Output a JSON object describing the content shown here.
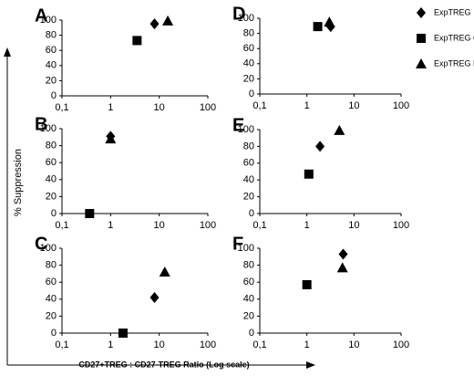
{
  "chart_data": [
    {
      "type": "scatter",
      "title": "A",
      "xscale": "log",
      "xlim": [
        0.1,
        100
      ],
      "ylim": [
        0,
        100
      ],
      "xticks": [
        {
          "value": 0.1,
          "label": "0,1"
        },
        1,
        10,
        100
      ],
      "yticks": [
        0,
        20,
        40,
        60,
        80,
        100
      ],
      "series": [
        {
          "marker": "diamond",
          "color": "#000000",
          "x": [
            8
          ],
          "values": [
            95
          ]
        },
        {
          "marker": "square",
          "color": "#000000",
          "x": [
            3.5
          ],
          "values": [
            73
          ]
        },
        {
          "marker": "triangle",
          "color": "#000000",
          "x": [
            15
          ],
          "values": [
            99
          ]
        }
      ]
    },
    {
      "type": "scatter",
      "title": "B",
      "xscale": "log",
      "xlim": [
        0.1,
        100
      ],
      "ylim": [
        0,
        100
      ],
      "xticks": [
        {
          "value": 0.1,
          "label": "0,1"
        },
        1,
        10,
        100
      ],
      "yticks": [
        0,
        20,
        40,
        60,
        80,
        100
      ],
      "series": [
        {
          "marker": "diamond",
          "color": "#000000",
          "x": [
            1
          ],
          "values": [
            91
          ]
        },
        {
          "marker": "square",
          "color": "#000000",
          "x": [
            0.37
          ],
          "values": [
            0
          ]
        },
        {
          "marker": "triangle",
          "color": "#000000",
          "x": [
            1
          ],
          "values": [
            88
          ]
        }
      ]
    },
    {
      "type": "scatter",
      "title": "C",
      "xscale": "log",
      "xlim": [
        0.1,
        100
      ],
      "ylim": [
        0,
        100
      ],
      "xticks": [
        {
          "value": 0.1,
          "label": "0,1"
        },
        1,
        10,
        100
      ],
      "yticks": [
        0,
        20,
        40,
        60,
        80,
        100
      ],
      "series": [
        {
          "marker": "diamond",
          "color": "#000000",
          "x": [
            8
          ],
          "values": [
            42
          ]
        },
        {
          "marker": "square",
          "color": "#000000",
          "x": [
            1.8
          ],
          "values": [
            0
          ]
        },
        {
          "marker": "triangle",
          "color": "#000000",
          "x": [
            13
          ],
          "values": [
            72
          ]
        }
      ]
    },
    {
      "type": "scatter",
      "title": "D",
      "xscale": "log",
      "xlim": [
        0.1,
        100
      ],
      "ylim": [
        0,
        100
      ],
      "xticks": [
        {
          "value": 0.1,
          "label": "0,1"
        },
        1,
        10,
        100
      ],
      "yticks": [
        0,
        20,
        40,
        60,
        80,
        100
      ],
      "series": [
        {
          "marker": "diamond",
          "color": "#000000",
          "x": [
            3.2
          ],
          "values": [
            89
          ]
        },
        {
          "marker": "square",
          "color": "#000000",
          "x": [
            1.7
          ],
          "values": [
            89
          ]
        },
        {
          "marker": "triangle",
          "color": "#000000",
          "x": [
            3
          ],
          "values": [
            95
          ]
        }
      ]
    },
    {
      "type": "scatter",
      "title": "E",
      "xscale": "log",
      "xlim": [
        0.1,
        100
      ],
      "ylim": [
        0,
        100
      ],
      "xticks": [
        {
          "value": 0.1,
          "label": "0,1"
        },
        1,
        10,
        100
      ],
      "yticks": [
        0,
        20,
        40,
        60,
        80,
        100
      ],
      "series": [
        {
          "marker": "diamond",
          "color": "#000000",
          "x": [
            1.9
          ],
          "values": [
            80
          ]
        },
        {
          "marker": "square",
          "color": "#000000",
          "x": [
            1.1
          ],
          "values": [
            47
          ]
        },
        {
          "marker": "triangle",
          "color": "#000000",
          "x": [
            4.9
          ],
          "values": [
            99
          ]
        }
      ]
    },
    {
      "type": "scatter",
      "title": "F",
      "xscale": "log",
      "xlim": [
        0.1,
        100
      ],
      "ylim": [
        0,
        100
      ],
      "xticks": [
        {
          "value": 0.1,
          "label": "0,1"
        },
        1,
        10,
        100
      ],
      "yticks": [
        0,
        20,
        40,
        60,
        80,
        100
      ],
      "series": [
        {
          "marker": "diamond",
          "color": "#000000",
          "x": [
            5.9
          ],
          "values": [
            93
          ]
        },
        {
          "marker": "square",
          "color": "#000000",
          "x": [
            1
          ],
          "values": [
            57
          ]
        },
        {
          "marker": "triangle",
          "color": "#000000",
          "x": [
            5.7
          ],
          "values": [
            77
          ]
        }
      ]
    }
  ],
  "legend": [
    {
      "name": "ExpTREG",
      "marker": "diamond"
    },
    {
      "name": "ExpTREG CsA",
      "marker": "square"
    },
    {
      "name": "ExpTREG Rapamycin",
      "marker": "triangle"
    }
  ],
  "y_label": "% Suppression",
  "x_label": "CD27+TREG : CD27-TREG Ratio (Log scale)"
}
